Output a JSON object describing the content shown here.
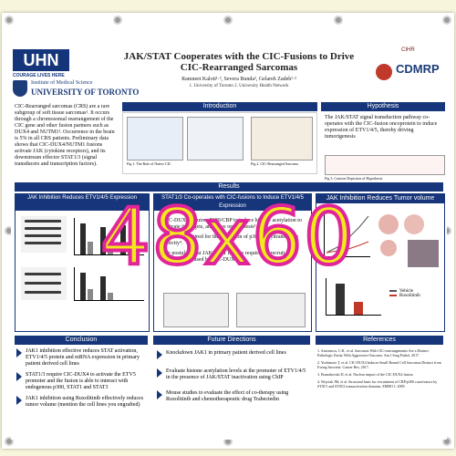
{
  "poster": {
    "title": "JAK/STAT Cooperates with the CIC-Fusions to Drive CIC-Rearranged Sarcomas",
    "authors": "Ramneet Kaloti¹·², Severa Bunda², Gelareh Zadeh¹·²",
    "affiliations": "1. University of Toronto 2. University Health Network",
    "logo_uhn": "UHN",
    "logo_uhn_tag": "COURAGE LIVES HERE",
    "logo_uoft_line1": "Institute of Medical Science",
    "logo_uoft_line2": "UNIVERSITY OF TORONTO",
    "logo_cdmrp": "CDMRP",
    "logo_cihr": "CIHR",
    "intro_text": "CIC-Rearranged sarcomas (CRS) are a rare subgroup of soft tissue sarcomas¹. It occurs through a chromosomal rearrangement of the CIC gene and other fusion partners such as DUX4 and NUTM1². Occurrence in the brain is 5% in all CRS patients. Preliminary data shows that CIC-DUX4/NUTM1 fusions activate JAK (cytokine receptors), and its downstream effector STAT1/3 (signal transducers and transcription factors).",
    "sections": {
      "introduction": "Introduction",
      "hypothesis": "Hypothesis",
      "results": "Results",
      "jak_inhibition": "JAK Inhibition Reduces ETV1/4/5 Expression",
      "stat_cooperates": "STAT1/3 Co-operates with CIC-fusions to Induce ETV1/4/5 Expression",
      "tumor_volume": "JAK Inhibition Reduces Tumor volume",
      "conclusion": "Conclusion",
      "future": "Future Directions",
      "references": "References"
    },
    "hypothesis_text": "The JAK/STAT signal transduction pathway co-operates with the CIC-fusion oncoprotein to induce expression of ETV1/4/5, thereby driving tumorigenesis",
    "hypothesis_caption": "Fig 3. Cartoon Depiction of Hypothesis",
    "intro_fig1_caption": "Fig 1. The Role of Native CIC",
    "intro_fig2_caption": "Fig 2. CIC-Rearranged Sarcoma",
    "stat_bullets": [
      "CIC-DUX4 requires P300/CBP to induce histone acetylation to activate its targets, and drive oncogenesis³",
      "STAT1 is required for the activation of p300 acetyltransferase activity⁴.",
      "We postulate that JAK/STAT may be required to recruit p300 which is then used by CIC-DUX4"
    ],
    "conclusion": [
      "JAK1 inhibition effective reduces STAT activation, ETV1/4/5 protein and mRNA expression in primary patient derived cell lines",
      "STAT1/3 require CIC-DUX4 to activate the ETV5 promoter and the fusion is able to interact with endogenous p300, STAT1 and STAT3",
      "JAK1 inhibition using Ruxolitinib effectively reduces tumor volume (mention the cell lines you engrafted)"
    ],
    "future": [
      "Knockdown JAK1 in primary patient derived cell lines",
      "Evaluate histone acetylation levels at the promoter of ETV1/4/5 in the presence of JAK/STAT inactivation using ChIP",
      "Mouse studies to evaluate the effect of co-therapy using Ruxolitinib and chemotherapeutic drug Trabectedin"
    ],
    "references": [
      "1. Antonescu, C.R., et al. Sarcomas With CIC-rearrangements Are a Distinct Pathologic Entity With Aggressive Outcome. Am J Surg Pathol, 2017.",
      "2. Yoshimoto T, et al. CIC-DUX4 Induces Small Round Cell Sarcomas Distinct from Ewing Sarcoma. Cancer Res, 2017.",
      "3. Bosnakovski D, et al. Nuclear import of the CIC-DUX4 fusion.",
      "4. Wojciak JM, et al. Structural basis for recruitment of CBP/p300 coactivators by STAT1 and STAT2 transactivation domains. EMBO J, 2009."
    ],
    "legend_vehicle": "Vehicle",
    "legend_ruxolitinib": "Ruxolitinib"
  },
  "overlay": {
    "size_label": "48x60"
  },
  "colors": {
    "header_blue": "#16357a",
    "stamp_fill": "#f3e81a",
    "stamp_stroke": "#e0259b"
  }
}
